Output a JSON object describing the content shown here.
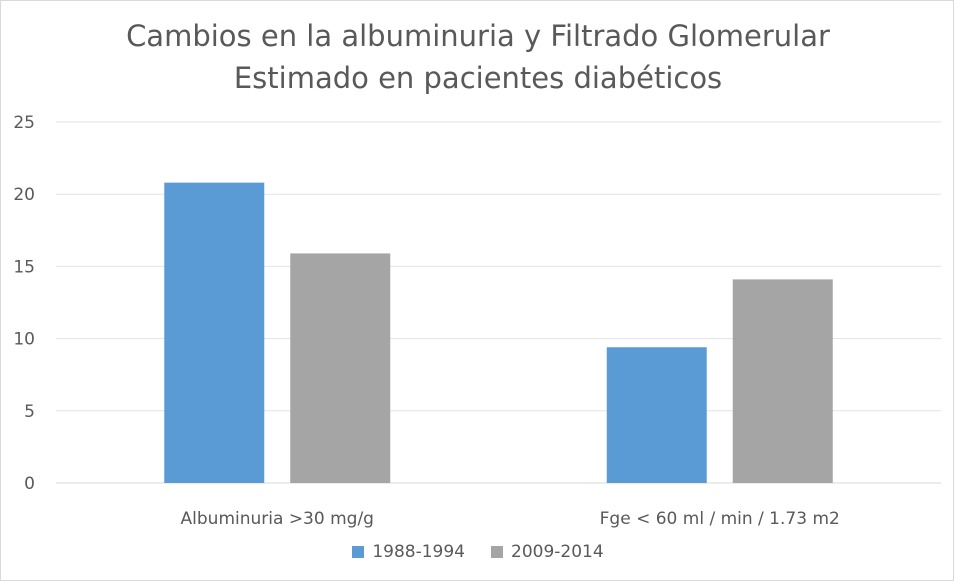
{
  "chart_data": {
    "type": "bar",
    "title_line1": "Cambios en la albuminuria y Filtrado Glomerular",
    "title_line2": "Estimado en pacientes diabéticos",
    "categories": [
      "Albuminuria >30 mg/g",
      "Fge < 60 ml / min / 1.73 m2"
    ],
    "series": [
      {
        "name": "1988-1994",
        "values": [
          20.8,
          9.4
        ],
        "color": "#5b9bd5"
      },
      {
        "name": "2009-2014",
        "values": [
          15.9,
          14.1
        ],
        "color": "#a5a5a5"
      }
    ],
    "ylim": [
      0,
      25
    ],
    "yticks": [
      0,
      5,
      10,
      15,
      20,
      25
    ],
    "grid": true,
    "legend_position": "bottom"
  }
}
